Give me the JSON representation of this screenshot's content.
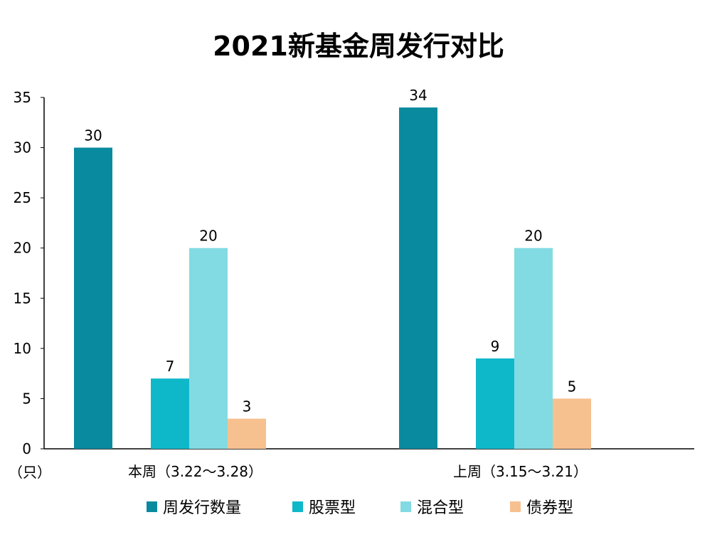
{
  "chart_data": {
    "type": "bar",
    "title": "2021新基金周发行对比",
    "unit_label": "（只）",
    "categories": [
      "本周（3.22～3.28）",
      "上周（3.15～3.21）"
    ],
    "series": [
      {
        "name": "周发行数量",
        "values": [
          30,
          34
        ],
        "color": "#0a8a9f"
      },
      {
        "name": "股票型",
        "values": [
          7,
          9
        ],
        "color": "#0fb8c9"
      },
      {
        "name": "混合型",
        "values": [
          20,
          20
        ],
        "color": "#82dbe2"
      },
      {
        "name": "债券型",
        "values": [
          3,
          5
        ],
        "color": "#f7c08f"
      }
    ],
    "ylim": [
      0,
      35
    ],
    "yticks": [
      0,
      5,
      10,
      15,
      20,
      25,
      30,
      35
    ],
    "grid": false,
    "legend_position": "bottom"
  }
}
